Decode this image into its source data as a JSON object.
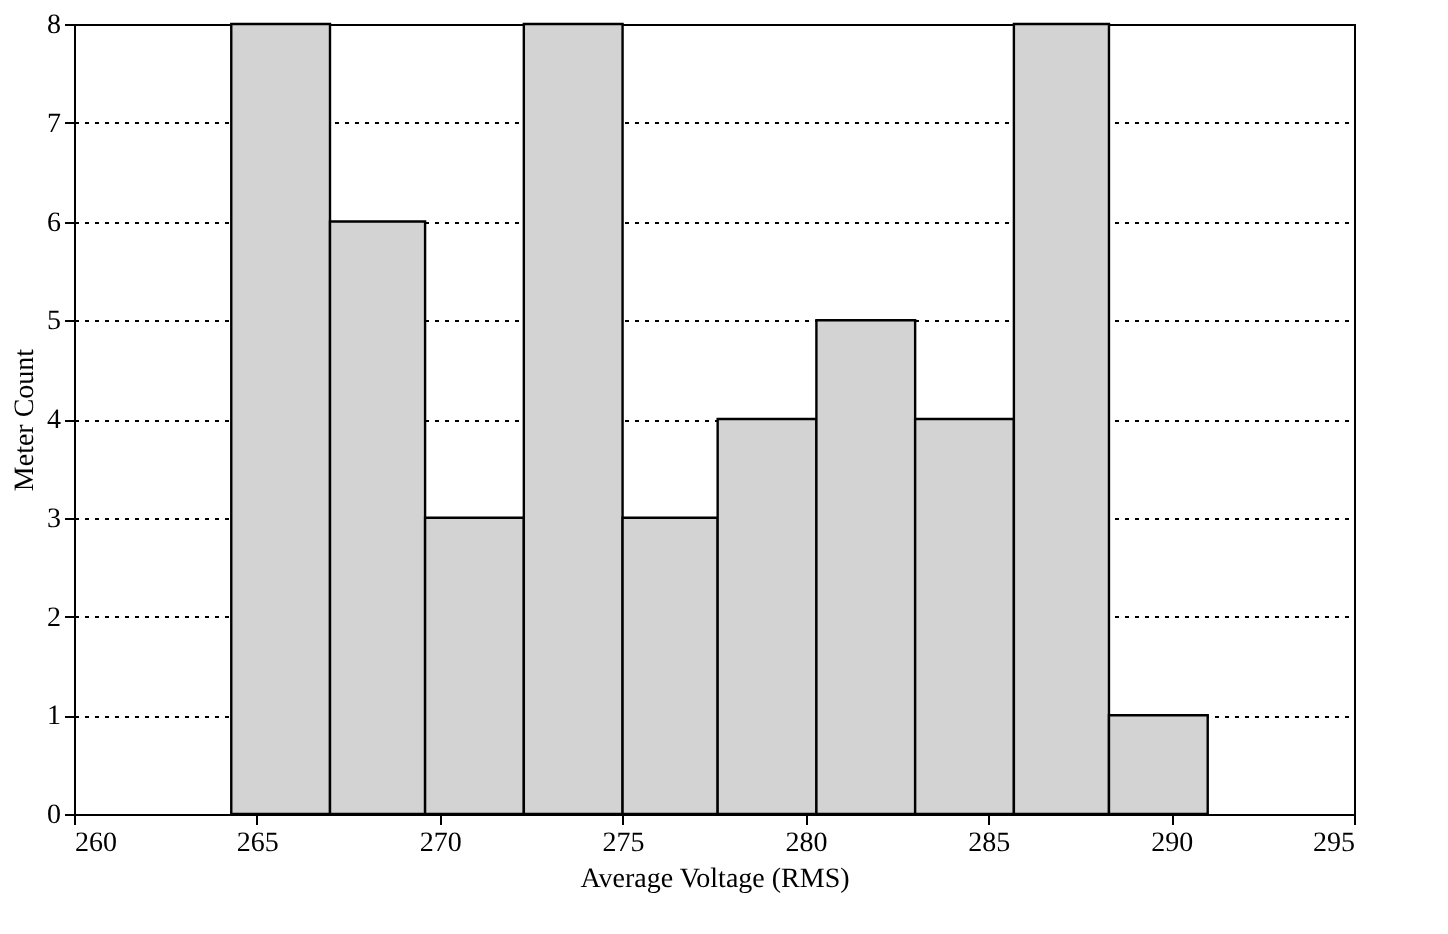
{
  "chart_data": {
    "type": "histogram",
    "xlabel": "Average Voltage (RMS)",
    "ylabel": "Meter Count",
    "bins": [
      264.3,
      267.0,
      269.6,
      272.3,
      275.0,
      277.6,
      280.3,
      283.0,
      285.7,
      288.3,
      291.0
    ],
    "values": [
      8,
      6,
      3,
      8,
      3,
      4,
      5,
      4,
      8,
      1
    ],
    "color": "#d3d3d3",
    "xlim": [
      260,
      295
    ],
    "xticks": [
      260,
      265,
      270,
      275,
      280,
      285,
      290,
      295
    ],
    "ylim": [
      0,
      8
    ],
    "yticks": [
      0,
      1,
      2,
      3,
      4,
      5,
      6,
      7,
      8
    ],
    "grid": "y"
  }
}
